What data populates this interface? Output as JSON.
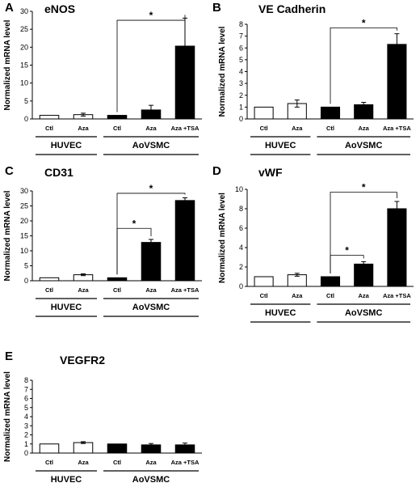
{
  "legend": {
    "groups": [
      "HUVEC",
      "AoVSMC"
    ],
    "group_colors": {
      "HUVEC": "#ffffff",
      "AoVSMC": "#000000"
    }
  },
  "chart_data": [
    {
      "type": "bar",
      "panel": "A",
      "title": "eNOS",
      "ylabel": "Normalized mRNA level",
      "ylim": [
        0,
        30
      ],
      "yticks": [
        0,
        5,
        10,
        15,
        20,
        25,
        30
      ],
      "categories": [
        "Ctl",
        "Aza",
        "Ctl",
        "Aza",
        "Aza +TSA"
      ],
      "values": [
        1,
        1.2,
        1,
        2.5,
        20.3
      ],
      "errors": [
        0,
        0.4,
        0,
        1.3,
        7.8
      ],
      "fills": [
        "#ffffff",
        "#ffffff",
        "#000000",
        "#000000",
        "#000000"
      ],
      "groups": [
        {
          "label": "HUVEC",
          "from": 0,
          "to": 1
        },
        {
          "label": "AoVSMC",
          "from": 2,
          "to": 4
        }
      ],
      "significance": [
        {
          "from": 2,
          "to": 4,
          "label": "*",
          "y": 27.5
        }
      ]
    },
    {
      "type": "bar",
      "panel": "B",
      "title": "VE Cadherin",
      "ylabel": "Normalized mRNA level",
      "ylim": [
        0,
        8
      ],
      "yticks": [
        0,
        1,
        2,
        3,
        4,
        5,
        6,
        7,
        8
      ],
      "categories": [
        "Ctl",
        "Aza",
        "Ctl",
        "Aza",
        "Aza +TSA"
      ],
      "values": [
        1,
        1.3,
        1,
        1.2,
        6.3
      ],
      "errors": [
        0,
        0.3,
        0,
        0.2,
        0.9
      ],
      "fills": [
        "#ffffff",
        "#ffffff",
        "#000000",
        "#000000",
        "#000000"
      ],
      "groups": [
        {
          "label": "HUVEC",
          "from": 0,
          "to": 1
        },
        {
          "label": "AoVSMC",
          "from": 2,
          "to": 4
        }
      ],
      "significance": [
        {
          "from": 2,
          "to": 4,
          "label": "*",
          "y": 7.7
        }
      ]
    },
    {
      "type": "bar",
      "panel": "C",
      "title": "CD31",
      "ylabel": "Normalized mRNA level",
      "ylim": [
        0,
        30
      ],
      "yticks": [
        0,
        5,
        10,
        15,
        20,
        25,
        30
      ],
      "categories": [
        "Ctl",
        "Aza",
        "Ctl",
        "Aza",
        "Aza +TSA"
      ],
      "values": [
        1,
        2,
        1,
        12.8,
        26.8
      ],
      "errors": [
        0,
        0.3,
        0,
        1,
        0.9
      ],
      "fills": [
        "#ffffff",
        "#ffffff",
        "#000000",
        "#000000",
        "#000000"
      ],
      "groups": [
        {
          "label": "HUVEC",
          "from": 0,
          "to": 1
        },
        {
          "label": "AoVSMC",
          "from": 2,
          "to": 4
        }
      ],
      "significance": [
        {
          "from": 2,
          "to": 3,
          "label": "*",
          "y": 17.5
        },
        {
          "from": 2,
          "to": 4,
          "label": "*",
          "y": 29.2
        }
      ]
    },
    {
      "type": "bar",
      "panel": "D",
      "title": "vWF",
      "ylabel": "Normalized mRNA level",
      "ylim": [
        0,
        10
      ],
      "yticks": [
        0,
        2,
        4,
        6,
        8,
        10
      ],
      "categories": [
        "Ctl",
        "Aza",
        "Ctl",
        "Aza",
        "Aza +TSA"
      ],
      "values": [
        1,
        1.2,
        1,
        2.3,
        8
      ],
      "errors": [
        0,
        0.15,
        0,
        0.25,
        0.75
      ],
      "fills": [
        "#ffffff",
        "#ffffff",
        "#000000",
        "#000000",
        "#000000"
      ],
      "groups": [
        {
          "label": "HUVEC",
          "from": 0,
          "to": 1
        },
        {
          "label": "AoVSMC",
          "from": 2,
          "to": 4
        }
      ],
      "significance": [
        {
          "from": 2,
          "to": 3,
          "label": "*",
          "y": 3.2
        },
        {
          "from": 2,
          "to": 4,
          "label": "*",
          "y": 9.7
        }
      ]
    },
    {
      "type": "bar",
      "panel": "E",
      "title": "VEGFR2",
      "ylabel": "Normalized mRNA level",
      "ylim": [
        0,
        8
      ],
      "yticks": [
        0,
        1,
        2,
        3,
        4,
        5,
        6,
        7,
        8
      ],
      "categories": [
        "Ctl",
        "Aza",
        "Ctl",
        "Aza",
        "Aza +TSA"
      ],
      "values": [
        1,
        1.15,
        1,
        0.9,
        0.9
      ],
      "errors": [
        0,
        0.1,
        0,
        0.15,
        0.2
      ],
      "fills": [
        "#ffffff",
        "#ffffff",
        "#000000",
        "#000000",
        "#000000"
      ],
      "groups": [
        {
          "label": "HUVEC",
          "from": 0,
          "to": 1
        },
        {
          "label": "AoVSMC",
          "from": 2,
          "to": 4
        }
      ],
      "significance": []
    }
  ]
}
